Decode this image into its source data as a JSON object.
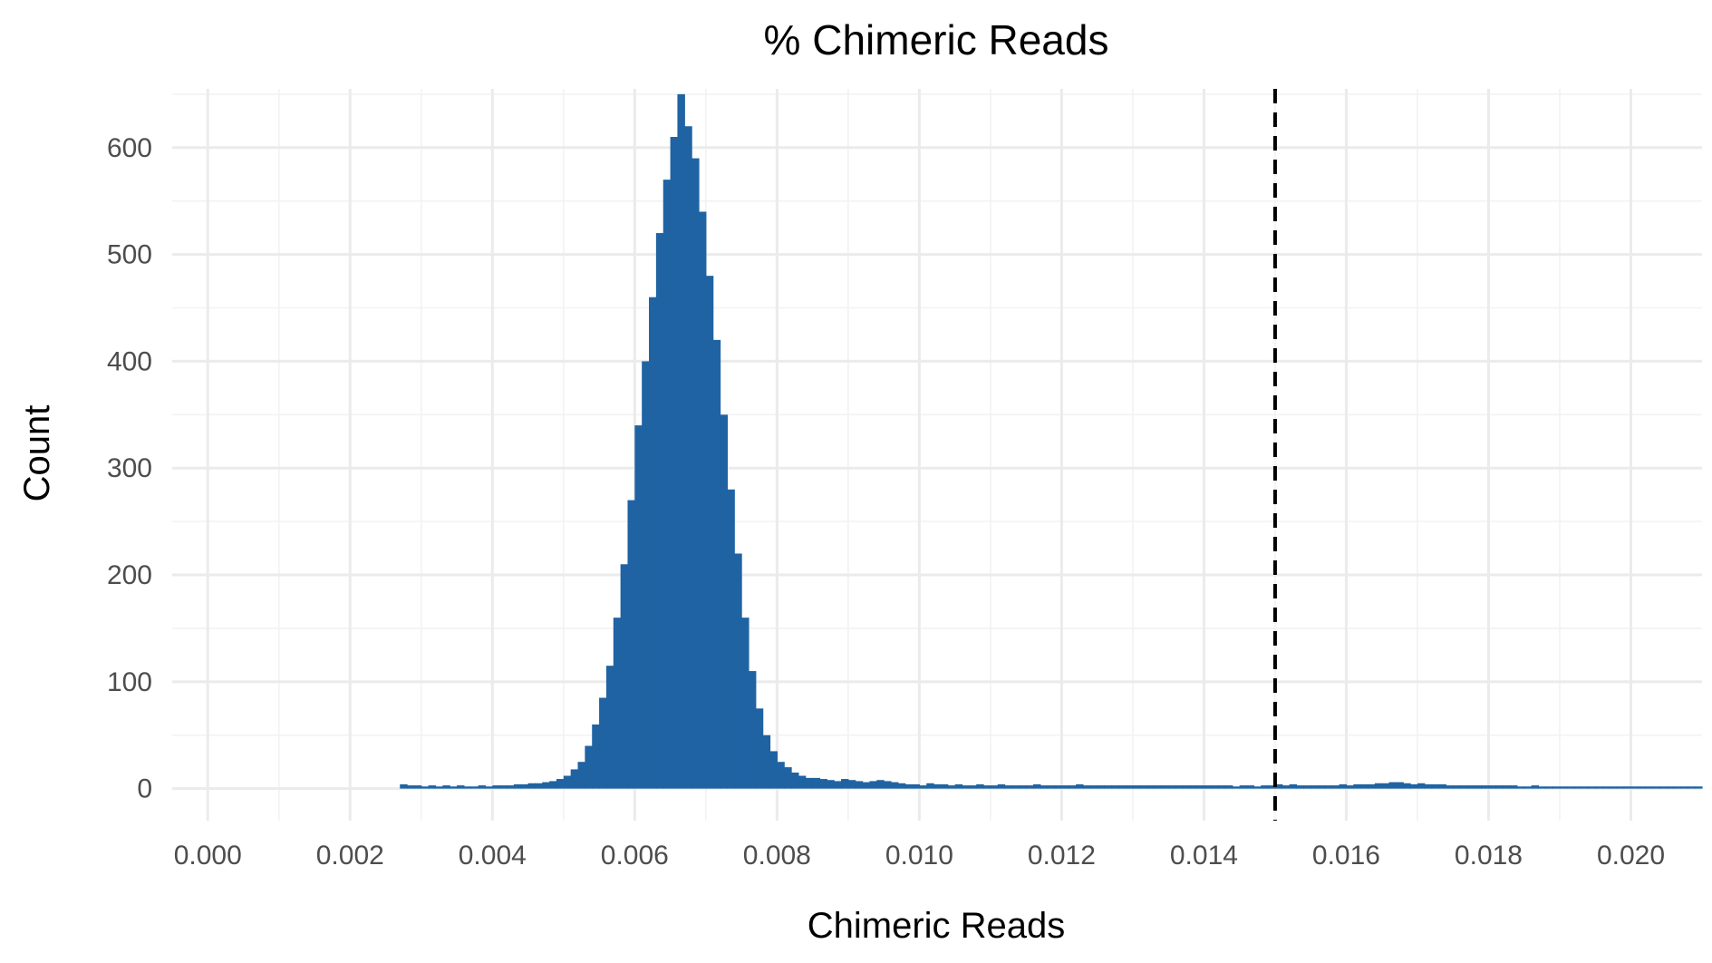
{
  "chart_data": {
    "type": "bar",
    "title": "% Chimeric Reads",
    "xlabel": "Chimeric Reads",
    "ylabel": "Count",
    "xlim": [
      -0.0005,
      0.021
    ],
    "ylim": [
      -30,
      655
    ],
    "x_ticks": [
      "0.000",
      "0.002",
      "0.004",
      "0.006",
      "0.008",
      "0.010",
      "0.012",
      "0.014",
      "0.016",
      "0.018",
      "0.020"
    ],
    "x_tick_values": [
      0.0,
      0.002,
      0.004,
      0.006,
      0.008,
      0.01,
      0.012,
      0.014,
      0.016,
      0.018,
      0.02
    ],
    "y_ticks": [
      "0",
      "100",
      "200",
      "300",
      "400",
      "500",
      "600"
    ],
    "y_tick_values": [
      0,
      100,
      200,
      300,
      400,
      500,
      600
    ],
    "grid": true,
    "reference_line": {
      "x": 0.015,
      "style": "dashed",
      "color": "#000000"
    },
    "bar_color": "#1f63a3",
    "bin_width": 0.0001,
    "bins": [
      [
        0.0027,
        4
      ],
      [
        0.0028,
        3
      ],
      [
        0.0029,
        3
      ],
      [
        0.003,
        2
      ],
      [
        0.0031,
        3
      ],
      [
        0.0032,
        2
      ],
      [
        0.0033,
        3
      ],
      [
        0.0034,
        2
      ],
      [
        0.0035,
        3
      ],
      [
        0.0036,
        2
      ],
      [
        0.0037,
        2
      ],
      [
        0.0038,
        3
      ],
      [
        0.0039,
        2
      ],
      [
        0.004,
        3
      ],
      [
        0.0041,
        3
      ],
      [
        0.0042,
        3
      ],
      [
        0.0043,
        4
      ],
      [
        0.0044,
        4
      ],
      [
        0.0045,
        5
      ],
      [
        0.0046,
        5
      ],
      [
        0.0047,
        6
      ],
      [
        0.0048,
        7
      ],
      [
        0.0049,
        9
      ],
      [
        0.005,
        12
      ],
      [
        0.0051,
        18
      ],
      [
        0.0052,
        25
      ],
      [
        0.0053,
        40
      ],
      [
        0.0054,
        60
      ],
      [
        0.0055,
        85
      ],
      [
        0.0056,
        115
      ],
      [
        0.0057,
        160
      ],
      [
        0.0058,
        210
      ],
      [
        0.0059,
        270
      ],
      [
        0.006,
        340
      ],
      [
        0.0061,
        400
      ],
      [
        0.0062,
        460
      ],
      [
        0.0063,
        520
      ],
      [
        0.0064,
        570
      ],
      [
        0.0065,
        610
      ],
      [
        0.0066,
        650
      ],
      [
        0.0067,
        620
      ],
      [
        0.0068,
        590
      ],
      [
        0.0069,
        540
      ],
      [
        0.007,
        480
      ],
      [
        0.0071,
        420
      ],
      [
        0.0072,
        350
      ],
      [
        0.0073,
        280
      ],
      [
        0.0074,
        220
      ],
      [
        0.0075,
        160
      ],
      [
        0.0076,
        110
      ],
      [
        0.0077,
        75
      ],
      [
        0.0078,
        50
      ],
      [
        0.0079,
        35
      ],
      [
        0.008,
        25
      ],
      [
        0.0081,
        20
      ],
      [
        0.0082,
        15
      ],
      [
        0.0083,
        12
      ],
      [
        0.0084,
        10
      ],
      [
        0.0085,
        10
      ],
      [
        0.0086,
        9
      ],
      [
        0.0087,
        8
      ],
      [
        0.0088,
        7
      ],
      [
        0.0089,
        9
      ],
      [
        0.009,
        8
      ],
      [
        0.0091,
        7
      ],
      [
        0.0092,
        6
      ],
      [
        0.0093,
        7
      ],
      [
        0.0094,
        8
      ],
      [
        0.0095,
        7
      ],
      [
        0.0096,
        6
      ],
      [
        0.0097,
        5
      ],
      [
        0.0098,
        4
      ],
      [
        0.0099,
        4
      ],
      [
        0.01,
        3
      ],
      [
        0.0101,
        5
      ],
      [
        0.0102,
        4
      ],
      [
        0.0103,
        4
      ],
      [
        0.0104,
        3
      ],
      [
        0.0105,
        4
      ],
      [
        0.0106,
        3
      ],
      [
        0.0107,
        3
      ],
      [
        0.0108,
        4
      ],
      [
        0.0109,
        3
      ],
      [
        0.011,
        3
      ],
      [
        0.0111,
        4
      ],
      [
        0.0112,
        3
      ],
      [
        0.0113,
        3
      ],
      [
        0.0114,
        3
      ],
      [
        0.0115,
        3
      ],
      [
        0.0116,
        4
      ],
      [
        0.0117,
        3
      ],
      [
        0.0118,
        3
      ],
      [
        0.0119,
        3
      ],
      [
        0.012,
        3
      ],
      [
        0.0121,
        3
      ],
      [
        0.0122,
        4
      ],
      [
        0.0123,
        3
      ],
      [
        0.0124,
        3
      ],
      [
        0.0125,
        3
      ],
      [
        0.0126,
        3
      ],
      [
        0.0127,
        3
      ],
      [
        0.0128,
        3
      ],
      [
        0.0129,
        3
      ],
      [
        0.013,
        3
      ],
      [
        0.0131,
        3
      ],
      [
        0.0132,
        3
      ],
      [
        0.0133,
        3
      ],
      [
        0.0134,
        3
      ],
      [
        0.0135,
        3
      ],
      [
        0.0136,
        3
      ],
      [
        0.0137,
        3
      ],
      [
        0.0138,
        3
      ],
      [
        0.0139,
        3
      ],
      [
        0.014,
        3
      ],
      [
        0.0141,
        3
      ],
      [
        0.0142,
        3
      ],
      [
        0.0143,
        3
      ],
      [
        0.0144,
        2
      ],
      [
        0.0145,
        3
      ],
      [
        0.0146,
        3
      ],
      [
        0.0147,
        2
      ],
      [
        0.0148,
        3
      ],
      [
        0.0149,
        3
      ],
      [
        0.015,
        4
      ],
      [
        0.0151,
        3
      ],
      [
        0.0152,
        4
      ],
      [
        0.0153,
        3
      ],
      [
        0.0154,
        3
      ],
      [
        0.0155,
        3
      ],
      [
        0.0156,
        3
      ],
      [
        0.0157,
        3
      ],
      [
        0.0158,
        3
      ],
      [
        0.0159,
        4
      ],
      [
        0.016,
        3
      ],
      [
        0.0161,
        4
      ],
      [
        0.0162,
        4
      ],
      [
        0.0163,
        4
      ],
      [
        0.0164,
        5
      ],
      [
        0.0165,
        5
      ],
      [
        0.0166,
        6
      ],
      [
        0.0167,
        6
      ],
      [
        0.0168,
        5
      ],
      [
        0.0169,
        4
      ],
      [
        0.017,
        5
      ],
      [
        0.0171,
        4
      ],
      [
        0.0172,
        4
      ],
      [
        0.0173,
        4
      ],
      [
        0.0174,
        3
      ],
      [
        0.0175,
        3
      ],
      [
        0.0176,
        3
      ],
      [
        0.0177,
        3
      ],
      [
        0.0178,
        3
      ],
      [
        0.0179,
        3
      ],
      [
        0.018,
        3
      ],
      [
        0.0181,
        3
      ],
      [
        0.0182,
        3
      ],
      [
        0.0183,
        3
      ],
      [
        0.0184,
        2
      ],
      [
        0.0185,
        2
      ],
      [
        0.0186,
        3
      ],
      [
        0.0187,
        2
      ],
      [
        0.0188,
        2
      ],
      [
        0.0189,
        2
      ],
      [
        0.019,
        2
      ],
      [
        0.0191,
        2
      ],
      [
        0.0192,
        2
      ],
      [
        0.0193,
        2
      ],
      [
        0.0194,
        2
      ],
      [
        0.0195,
        2
      ],
      [
        0.0196,
        2
      ],
      [
        0.0197,
        2
      ],
      [
        0.0198,
        2
      ],
      [
        0.0199,
        2
      ],
      [
        0.02,
        2
      ],
      [
        0.0201,
        2
      ],
      [
        0.0202,
        2
      ],
      [
        0.0203,
        2
      ],
      [
        0.0204,
        2
      ],
      [
        0.0205,
        2
      ],
      [
        0.0206,
        2
      ],
      [
        0.0207,
        2
      ],
      [
        0.0208,
        2
      ],
      [
        0.0209,
        2
      ]
    ]
  }
}
